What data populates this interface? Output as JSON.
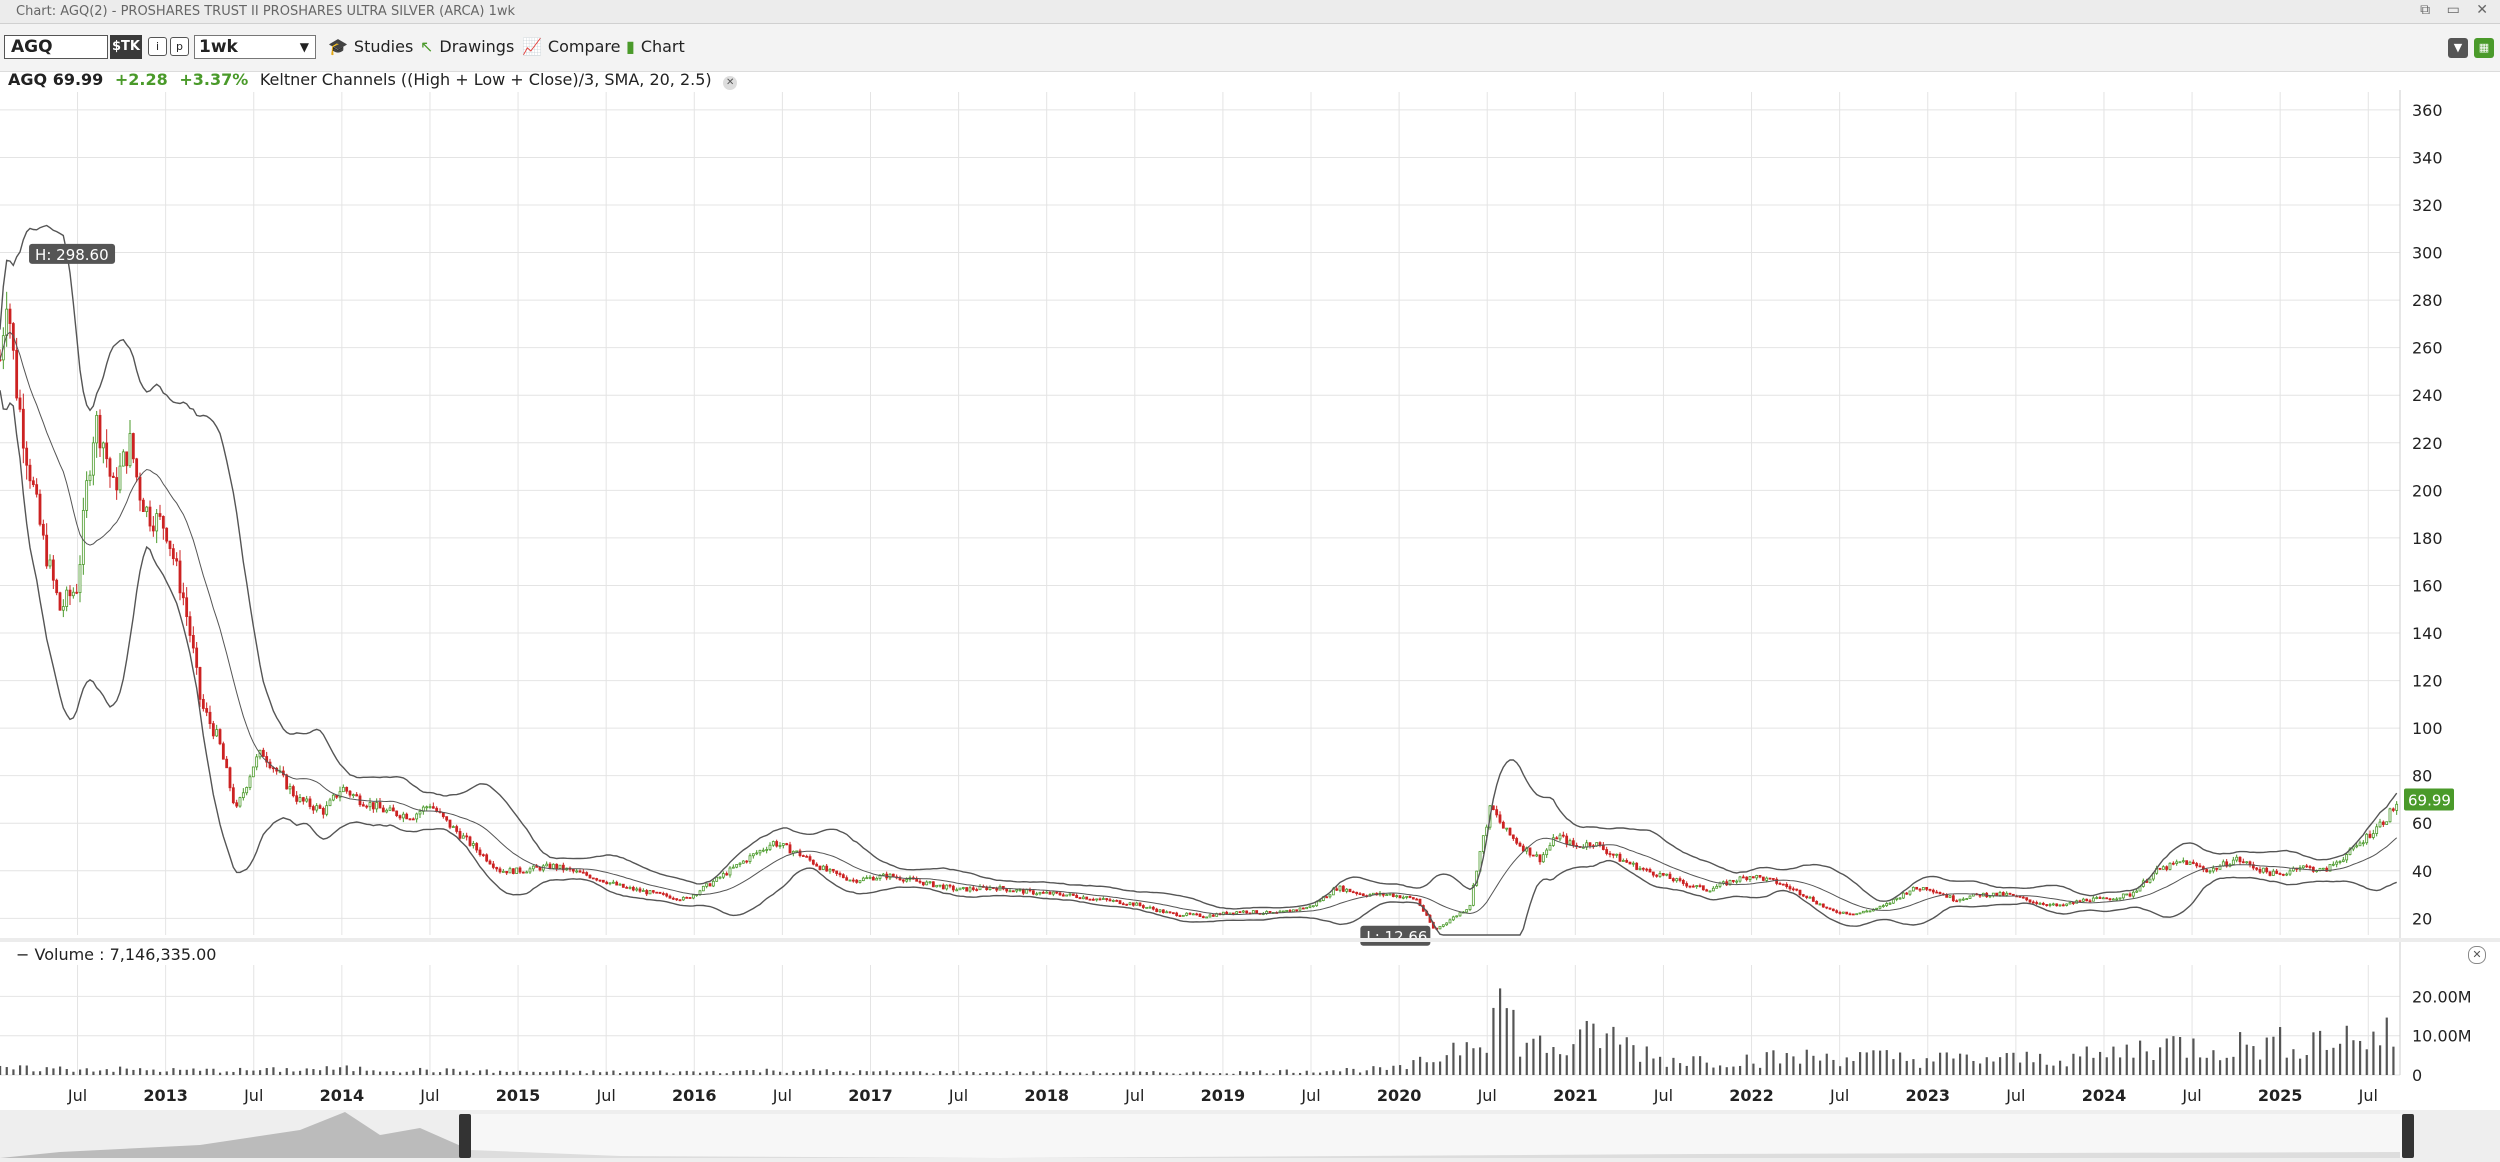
{
  "window": {
    "title": "Chart: AGQ(2) - PROSHARES TRUST II PROSHARES ULTRA SILVER (ARCA) 1wk"
  },
  "toolbar": {
    "symbol": "AGQ",
    "stk_label": "$TK",
    "period": "1wk",
    "studies_label": "Studies",
    "drawings_label": "Drawings",
    "compare_label": "Compare",
    "chart_label": "Chart"
  },
  "legend": {
    "symbol": "AGQ",
    "price": "69.99",
    "change": "+2.28",
    "change_pct": "+3.37%",
    "study": "Keltner Channels ((High + Low + Close)/3, SMA, 20, 2.5)"
  },
  "markers": {
    "high": "H: 298.60",
    "low": "L: 12.66",
    "last": "69.99"
  },
  "volume": {
    "label": "Volume",
    "value": "7,146,335.00"
  },
  "colors": {
    "up": "#4a9a2a",
    "down": "#cc2222",
    "grid": "#e4e4e4",
    "band": "#555555"
  },
  "chart_data": {
    "type": "candlestick",
    "price_axis": {
      "ticks": [
        360,
        340,
        320,
        300,
        280,
        260,
        240,
        220,
        200,
        180,
        160,
        140,
        120,
        100,
        80,
        60,
        40,
        20
      ],
      "range": [
        13,
        365
      ]
    },
    "volume_axis": {
      "ticks": [
        "20.00M",
        "10.00M",
        "0"
      ],
      "range": [
        0,
        28
      ]
    },
    "x_labels": [
      "Jul",
      "2013",
      "Jul",
      "2014",
      "Jul",
      "2015",
      "Jul",
      "2016",
      "Jul",
      "2017",
      "Jul",
      "2018",
      "Jul",
      "2019",
      "Jul",
      "2020",
      "Jul",
      "2021",
      "Jul",
      "2022",
      "Jul",
      "2023",
      "Jul",
      "2024",
      "Jul",
      "2025",
      "Jul"
    ],
    "x_bold": [
      false,
      true,
      false,
      true,
      false,
      true,
      false,
      true,
      false,
      true,
      false,
      true,
      false,
      true,
      false,
      true,
      false,
      true,
      false,
      true,
      false,
      true,
      false,
      true,
      false,
      true,
      false
    ],
    "x_years": [
      2012.5,
      2013,
      2013.5,
      2014,
      2014.5,
      2015,
      2015.5,
      2016,
      2016.5,
      2017,
      2017.5,
      2018,
      2018.5,
      2019,
      2019.5,
      2020,
      2020.5,
      2021,
      2021.5,
      2022,
      2022.5,
      2023,
      2023.5,
      2024,
      2024.5,
      2025,
      2025.5
    ],
    "x_range": [
      2012.06,
      2025.68
    ],
    "price_path": [
      [
        2012.06,
        255
      ],
      [
        2012.1,
        285
      ],
      [
        2012.15,
        245
      ],
      [
        2012.2,
        220
      ],
      [
        2012.3,
        180
      ],
      [
        2012.4,
        150
      ],
      [
        2012.5,
        160
      ],
      [
        2012.55,
        200
      ],
      [
        2012.6,
        230
      ],
      [
        2012.65,
        220
      ],
      [
        2012.7,
        200
      ],
      [
        2012.8,
        220
      ],
      [
        2012.85,
        200
      ],
      [
        2012.9,
        190
      ],
      [
        2013.0,
        185
      ],
      [
        2013.05,
        170
      ],
      [
        2013.1,
        155
      ],
      [
        2013.15,
        135
      ],
      [
        2013.2,
        110
      ],
      [
        2013.3,
        95
      ],
      [
        2013.4,
        65
      ],
      [
        2013.5,
        85
      ],
      [
        2013.55,
        90
      ],
      [
        2013.65,
        80
      ],
      [
        2013.75,
        70
      ],
      [
        2013.9,
        65
      ],
      [
        2014.0,
        75
      ],
      [
        2014.1,
        70
      ],
      [
        2014.25,
        65
      ],
      [
        2014.4,
        63
      ],
      [
        2014.5,
        68
      ],
      [
        2014.6,
        60
      ],
      [
        2014.75,
        50
      ],
      [
        2014.9,
        40
      ],
      [
        2015.0,
        40
      ],
      [
        2015.2,
        42
      ],
      [
        2015.4,
        38
      ],
      [
        2015.6,
        33
      ],
      [
        2015.8,
        30
      ],
      [
        2015.95,
        28
      ],
      [
        2016.1,
        35
      ],
      [
        2016.3,
        45
      ],
      [
        2016.45,
        52
      ],
      [
        2016.6,
        47
      ],
      [
        2016.75,
        40
      ],
      [
        2016.9,
        36
      ],
      [
        2017.1,
        38
      ],
      [
        2017.3,
        35
      ],
      [
        2017.5,
        32
      ],
      [
        2017.7,
        33
      ],
      [
        2017.9,
        31
      ],
      [
        2018.1,
        30
      ],
      [
        2018.3,
        28
      ],
      [
        2018.5,
        26
      ],
      [
        2018.7,
        22
      ],
      [
        2018.9,
        21
      ],
      [
        2019.1,
        23
      ],
      [
        2019.3,
        22
      ],
      [
        2019.5,
        25
      ],
      [
        2019.65,
        33
      ],
      [
        2019.8,
        30
      ],
      [
        2019.95,
        30
      ],
      [
        2020.1,
        28
      ],
      [
        2020.2,
        15
      ],
      [
        2020.3,
        20
      ],
      [
        2020.4,
        25
      ],
      [
        2020.45,
        45
      ],
      [
        2020.52,
        67
      ],
      [
        2020.6,
        57
      ],
      [
        2020.7,
        50
      ],
      [
        2020.8,
        45
      ],
      [
        2020.9,
        55
      ],
      [
        2021.0,
        50
      ],
      [
        2021.1,
        52
      ],
      [
        2021.25,
        45
      ],
      [
        2021.4,
        40
      ],
      [
        2021.5,
        38
      ],
      [
        2021.6,
        35
      ],
      [
        2021.75,
        32
      ],
      [
        2021.9,
        36
      ],
      [
        2022.0,
        38
      ],
      [
        2022.15,
        35
      ],
      [
        2022.3,
        30
      ],
      [
        2022.45,
        23
      ],
      [
        2022.6,
        22
      ],
      [
        2022.75,
        25
      ],
      [
        2022.9,
        32
      ],
      [
        2023.0,
        33
      ],
      [
        2023.15,
        28
      ],
      [
        2023.3,
        30
      ],
      [
        2023.45,
        30
      ],
      [
        2023.6,
        27
      ],
      [
        2023.75,
        25
      ],
      [
        2023.9,
        28
      ],
      [
        2024.0,
        28
      ],
      [
        2024.15,
        30
      ],
      [
        2024.3,
        40
      ],
      [
        2024.45,
        44
      ],
      [
        2024.6,
        40
      ],
      [
        2024.75,
        45
      ],
      [
        2024.9,
        40
      ],
      [
        2025.0,
        38
      ],
      [
        2025.1,
        42
      ],
      [
        2025.25,
        40
      ],
      [
        2025.4,
        48
      ],
      [
        2025.5,
        55
      ],
      [
        2025.6,
        62
      ],
      [
        2025.68,
        70
      ]
    ],
    "volume_path": [
      [
        2012.06,
        2
      ],
      [
        2012.5,
        2
      ],
      [
        2013.0,
        1.5
      ],
      [
        2013.5,
        1.5
      ],
      [
        2014.0,
        2
      ],
      [
        2014.5,
        1.5
      ],
      [
        2015.0,
        1
      ],
      [
        2016.0,
        1
      ],
      [
        2016.5,
        1.5
      ],
      [
        2017.0,
        1
      ],
      [
        2018.0,
        0.8
      ],
      [
        2019.0,
        0.8
      ],
      [
        2019.6,
        1.5
      ],
      [
        2020.0,
        2
      ],
      [
        2020.2,
        5
      ],
      [
        2020.5,
        16
      ],
      [
        2020.55,
        26
      ],
      [
        2020.7,
        10
      ],
      [
        2021.0,
        8
      ],
      [
        2021.1,
        14
      ],
      [
        2021.5,
        5
      ],
      [
        2022.0,
        5
      ],
      [
        2022.5,
        6
      ],
      [
        2023.0,
        5
      ],
      [
        2023.5,
        5
      ],
      [
        2024.0,
        6
      ],
      [
        2024.3,
        10
      ],
      [
        2024.6,
        9
      ],
      [
        2025.0,
        10
      ],
      [
        2025.3,
        12
      ],
      [
        2025.68,
        12
      ]
    ]
  }
}
